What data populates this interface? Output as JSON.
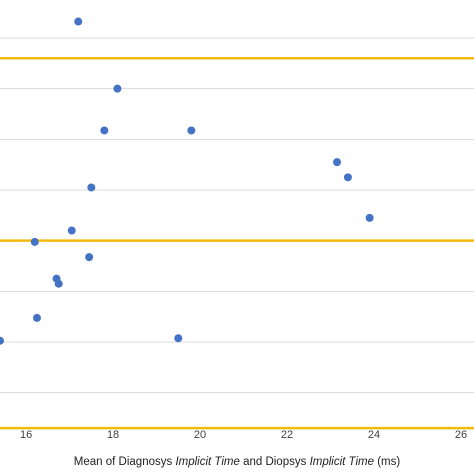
{
  "chart_data": {
    "type": "scatter",
    "title": "",
    "xlabel": {
      "parts": [
        {
          "text": "Mean of Diagnosys ",
          "italic": false
        },
        {
          "text": "Implicit Time",
          "italic": true
        },
        {
          "text": " and Diopsys ",
          "italic": false
        },
        {
          "text": "Implicit Time",
          "italic": true
        },
        {
          "text": " (ms)",
          "italic": false
        }
      ]
    },
    "ylabel": "",
    "x_ticks": [
      16,
      18,
      20,
      22,
      24,
      26
    ],
    "xlim": [
      15.4,
      26.3
    ],
    "ylim": [
      -7.0,
      9.5
    ],
    "grid": {
      "horizontal": true,
      "vertical": false,
      "y_lines": [
        -6,
        -4,
        -2,
        0,
        2,
        4,
        6,
        8
      ]
    },
    "reference_lines": [
      {
        "y": 7.2,
        "color": "#f2b90f"
      },
      {
        "y": 0.0,
        "color": "#f2b90f"
      },
      {
        "y": -7.4,
        "color": "#f2b90f"
      }
    ],
    "point_color": "#4472c4",
    "points": [
      {
        "x": 17.2,
        "y": 8.65
      },
      {
        "x": 18.1,
        "y": 6.0
      },
      {
        "x": 17.8,
        "y": 4.35
      },
      {
        "x": 19.8,
        "y": 4.35
      },
      {
        "x": 23.15,
        "y": 3.1
      },
      {
        "x": 23.4,
        "y": 2.5
      },
      {
        "x": 17.5,
        "y": 2.1
      },
      {
        "x": 23.9,
        "y": 0.9
      },
      {
        "x": 17.05,
        "y": 0.4
      },
      {
        "x": 16.2,
        "y": -0.05
      },
      {
        "x": 17.45,
        "y": -0.65
      },
      {
        "x": 16.7,
        "y": -1.5
      },
      {
        "x": 16.75,
        "y": -1.7
      },
      {
        "x": 16.25,
        "y": -3.05
      },
      {
        "x": 15.4,
        "y": -3.95
      },
      {
        "x": 19.5,
        "y": -3.85
      }
    ]
  }
}
